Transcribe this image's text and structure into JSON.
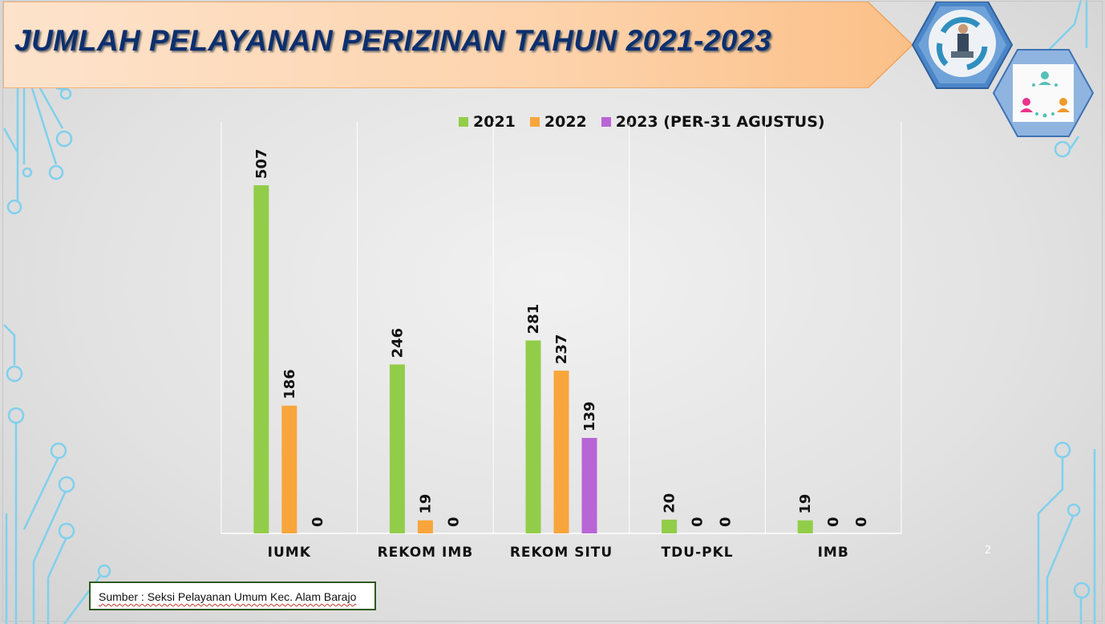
{
  "slide": {
    "title": "JUMLAH PELAYANAN PERIZINAN TAHUN 2021-2023",
    "page_number": "2",
    "source": "Sumber : Seksi Pelayanan Umum Kec. Alam Barajo",
    "icons": [
      "process-cycle-icon",
      "people-network-icon"
    ]
  },
  "chart_data": {
    "type": "bar",
    "categories": [
      "IUMK",
      "REKOM IMB",
      "REKOM SITU",
      "TDU-PKL",
      "IMB"
    ],
    "series": [
      {
        "name": "2021",
        "color": "#92cd4a",
        "values": [
          507,
          246,
          281,
          20,
          19
        ]
      },
      {
        "name": "2022",
        "color": "#f8a53c",
        "values": [
          186,
          19,
          237,
          0,
          0
        ]
      },
      {
        "name": "2023 (PER-31 AGUSTUS)",
        "color": "#b865d6",
        "values": [
          0,
          0,
          139,
          0,
          0
        ]
      }
    ],
    "ylim": [
      0,
      600
    ],
    "legend_position": "top",
    "grid": "vertical separators"
  }
}
